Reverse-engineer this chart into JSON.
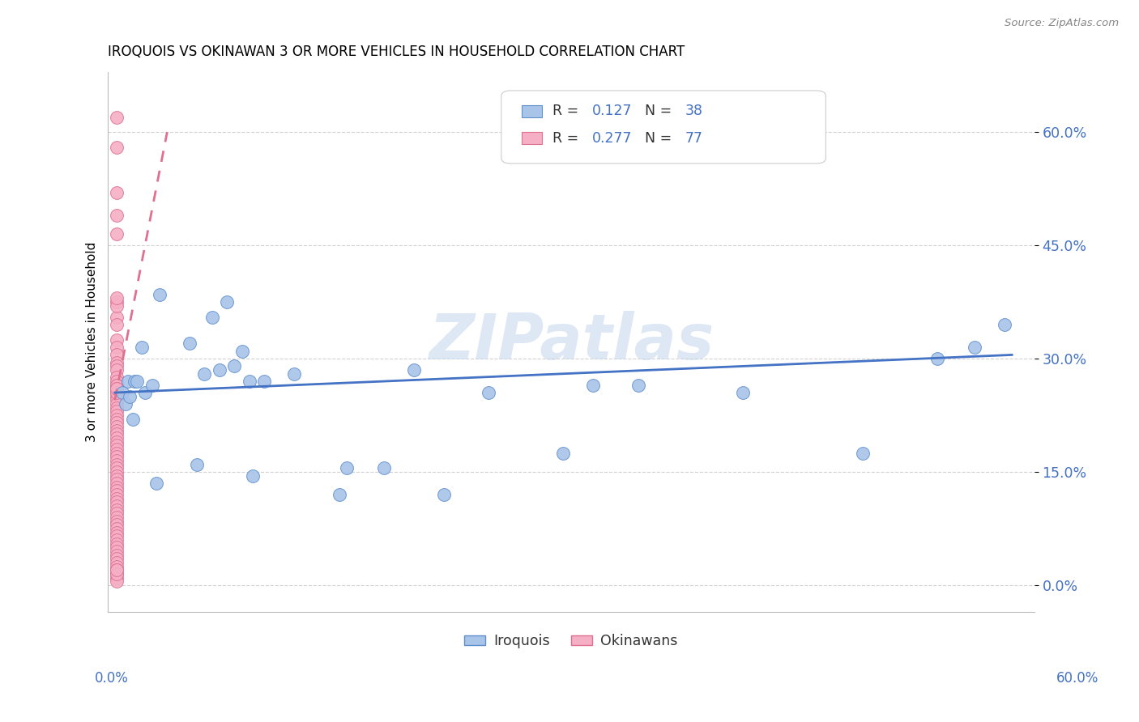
{
  "title": "IROQUOIS VS OKINAWAN 3 OR MORE VEHICLES IN HOUSEHOLD CORRELATION CHART",
  "source": "Source: ZipAtlas.com",
  "ylabel": "3 or more Vehicles in Household",
  "ytick_labels": [
    "0.0%",
    "15.0%",
    "30.0%",
    "45.0%",
    "60.0%"
  ],
  "ytick_values": [
    0.0,
    0.15,
    0.3,
    0.45,
    0.6
  ],
  "xlim": [
    -0.005,
    0.615
  ],
  "ylim": [
    -0.035,
    0.68
  ],
  "legend_r_iroquois": "0.127",
  "legend_n_iroquois": "38",
  "legend_r_okinawan": "0.277",
  "legend_n_okinawan": "77",
  "iroquois_color": "#a8c4e8",
  "okinawan_color": "#f5b0c5",
  "iroquois_edge_color": "#6090cc",
  "okinawan_edge_color": "#e07090",
  "iroquois_line_color": "#4472c4",
  "okinawan_line_color": "#e07090",
  "label_color": "#4472c4",
  "watermark": "ZIPatlas",
  "iroquois_x": [
    0.005,
    0.007,
    0.009,
    0.01,
    0.012,
    0.013,
    0.015,
    0.018,
    0.02,
    0.025,
    0.028,
    0.03,
    0.05,
    0.055,
    0.06,
    0.065,
    0.07,
    0.075,
    0.08,
    0.085,
    0.09,
    0.092,
    0.1,
    0.12,
    0.15,
    0.155,
    0.18,
    0.2,
    0.22,
    0.25,
    0.3,
    0.32,
    0.35,
    0.42,
    0.5,
    0.55,
    0.575,
    0.595
  ],
  "iroquois_y": [
    0.255,
    0.24,
    0.27,
    0.25,
    0.22,
    0.27,
    0.27,
    0.315,
    0.255,
    0.265,
    0.135,
    0.385,
    0.32,
    0.16,
    0.28,
    0.355,
    0.285,
    0.375,
    0.29,
    0.31,
    0.27,
    0.145,
    0.27,
    0.28,
    0.12,
    0.155,
    0.155,
    0.285,
    0.12,
    0.255,
    0.175,
    0.265,
    0.265,
    0.255,
    0.175,
    0.3,
    0.315,
    0.345
  ],
  "okinawan_x": [
    0.001,
    0.001,
    0.001,
    0.001,
    0.001,
    0.001,
    0.001,
    0.001,
    0.001,
    0.001,
    0.001,
    0.001,
    0.001,
    0.001,
    0.001,
    0.001,
    0.001,
    0.001,
    0.001,
    0.001,
    0.001,
    0.001,
    0.001,
    0.001,
    0.001,
    0.001,
    0.001,
    0.001,
    0.001,
    0.001,
    0.001,
    0.001,
    0.001,
    0.001,
    0.001,
    0.001,
    0.001,
    0.001,
    0.001,
    0.001,
    0.001,
    0.001,
    0.001,
    0.001,
    0.001,
    0.001,
    0.001,
    0.001,
    0.001,
    0.001,
    0.001,
    0.001,
    0.001,
    0.001,
    0.001,
    0.001,
    0.001,
    0.001,
    0.001,
    0.001,
    0.001,
    0.001,
    0.001,
    0.001,
    0.001,
    0.001,
    0.001,
    0.001,
    0.001,
    0.001,
    0.001,
    0.001,
    0.001,
    0.001,
    0.001,
    0.001,
    0.001
  ],
  "okinawan_y": [
    0.62,
    0.58,
    0.52,
    0.49,
    0.465,
    0.375,
    0.355,
    0.345,
    0.325,
    0.315,
    0.305,
    0.295,
    0.29,
    0.285,
    0.275,
    0.27,
    0.265,
    0.26,
    0.255,
    0.25,
    0.245,
    0.24,
    0.235,
    0.23,
    0.225,
    0.22,
    0.215,
    0.21,
    0.205,
    0.2,
    0.195,
    0.19,
    0.185,
    0.18,
    0.175,
    0.17,
    0.165,
    0.16,
    0.155,
    0.15,
    0.145,
    0.14,
    0.135,
    0.13,
    0.125,
    0.12,
    0.115,
    0.11,
    0.105,
    0.1,
    0.095,
    0.09,
    0.085,
    0.08,
    0.075,
    0.07,
    0.065,
    0.06,
    0.055,
    0.05,
    0.045,
    0.04,
    0.035,
    0.03,
    0.025,
    0.02,
    0.015,
    0.01,
    0.005,
    0.37,
    0.265,
    0.26,
    0.38,
    0.015,
    0.255,
    0.26,
    0.02
  ],
  "oki_trendline_x": [
    0.0,
    0.035
  ],
  "oki_trendline_y": [
    0.245,
    0.6
  ],
  "iro_trendline_x": [
    0.0,
    0.6
  ],
  "iro_trendline_y": [
    0.255,
    0.305
  ]
}
